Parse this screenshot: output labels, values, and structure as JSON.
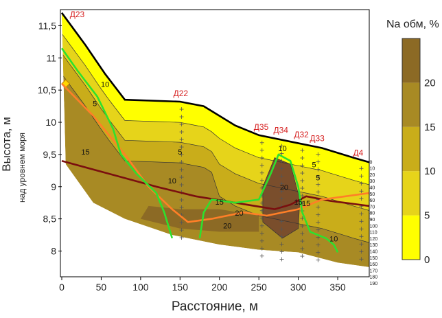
{
  "chart_data": {
    "type": "contour",
    "xlabel": "Расстояние, м",
    "ylabel": "Высота, м",
    "ylabel_sub": "над уровнем моря",
    "xlim": [
      0,
      390
    ],
    "ylim": [
      7.6,
      11.75
    ],
    "x_ticks": [
      0,
      50,
      100,
      150,
      200,
      250,
      300,
      350
    ],
    "y_ticks": [
      8,
      8.5,
      9,
      9.5,
      10,
      10.5,
      11,
      11.5
    ],
    "x_tick_labels": [
      "0",
      "50",
      "100",
      "150",
      "200",
      "250",
      "300",
      "350"
    ],
    "y_tick_labels": [
      "8",
      "8,5",
      "9",
      "9,5",
      "10",
      "10,5",
      "11",
      "11,5"
    ],
    "colorbar": {
      "title": "Na обм, %",
      "ticks": [
        "0",
        "5",
        "10",
        "15",
        "20"
      ],
      "levels": [
        0,
        5,
        10,
        15,
        20,
        25
      ],
      "colors": [
        "#ffff00",
        "#e6d41a",
        "#c9ad1a",
        "#a88a24",
        "#8c6a25",
        "#7a4e2c"
      ]
    },
    "surface": [
      [
        0,
        11.7
      ],
      [
        30,
        11.2
      ],
      [
        55,
        10.75
      ],
      [
        80,
        10.35
      ],
      [
        150,
        10.32
      ],
      [
        180,
        10.25
      ],
      [
        220,
        9.95
      ],
      [
        250,
        9.8
      ],
      [
        290,
        9.7
      ],
      [
        330,
        9.6
      ],
      [
        370,
        9.45
      ],
      [
        390,
        9.38
      ]
    ],
    "base": [
      [
        5,
        9.35
      ],
      [
        40,
        8.75
      ],
      [
        80,
        8.5
      ],
      [
        140,
        8.25
      ],
      [
        200,
        8.1
      ],
      [
        250,
        8.02
      ],
      [
        300,
        7.98
      ],
      [
        350,
        7.82
      ],
      [
        390,
        7.75
      ]
    ],
    "contour_labels": [
      "5",
      "10",
      "15",
      "5",
      "10",
      "15",
      "20",
      "20",
      "10",
      "15",
      "20",
      "15",
      "5",
      "10",
      "5"
    ],
    "wells": [
      {
        "label": "Д23",
        "x": 5,
        "top": 11.7,
        "depths": []
      },
      {
        "label": "Д22",
        "x": 152,
        "top": 10.32,
        "depths": []
      },
      {
        "label": "Д35",
        "x": 254,
        "top": 9.8,
        "depths": []
      },
      {
        "label": "Д34",
        "x": 279,
        "top": 9.75,
        "depths": []
      },
      {
        "label": "Д32",
        "x": 305,
        "top": 9.68,
        "depths": []
      },
      {
        "label": "Д33",
        "x": 325,
        "top": 9.62,
        "depths": []
      },
      {
        "label": "Д4",
        "x": 380,
        "top": 9.4,
        "depths": [
          "0",
          "10",
          "20",
          "30",
          "40",
          "50",
          "60",
          "70",
          "80",
          "90",
          "100",
          "110",
          "120",
          "130",
          "140",
          "150",
          "160",
          "170",
          "180",
          "190"
        ]
      }
    ],
    "lines": [
      {
        "color": "#7a0f0f",
        "points": [
          [
            0,
            9.4
          ],
          [
            60,
            9.2
          ],
          [
            120,
            9.0
          ],
          [
            170,
            8.85
          ],
          [
            220,
            8.75
          ],
          [
            270,
            8.65
          ],
          [
            290,
            8.72
          ],
          [
            310,
            8.85
          ],
          [
            340,
            8.78
          ],
          [
            390,
            8.7
          ]
        ]
      },
      {
        "color": "#ff7f27",
        "points": [
          [
            0,
            10.6
          ],
          [
            40,
            10.1
          ],
          [
            80,
            9.5
          ],
          [
            110,
            9.0
          ],
          [
            140,
            8.65
          ],
          [
            160,
            8.45
          ],
          [
            190,
            8.5
          ],
          [
            230,
            8.6
          ],
          [
            260,
            8.55
          ],
          [
            300,
            8.65
          ],
          [
            330,
            8.8
          ],
          [
            360,
            8.85
          ],
          [
            390,
            8.9
          ]
        ]
      },
      {
        "color": "#2ee02e",
        "points": [
          [
            0,
            11.15
          ],
          [
            20,
            10.8
          ],
          [
            45,
            10.4
          ],
          [
            65,
            9.9
          ],
          [
            75,
            9.5
          ],
          [
            95,
            9.2
          ],
          [
            120,
            8.9
          ],
          [
            130,
            8.6
          ],
          [
            140,
            8.2
          ]
        ]
      },
      {
        "color": "#2ee02e",
        "points": [
          [
            175,
            8.2
          ],
          [
            180,
            8.6
          ],
          [
            190,
            8.8
          ],
          [
            220,
            8.75
          ],
          [
            250,
            8.8
          ],
          [
            265,
            9.2
          ],
          [
            275,
            9.5
          ],
          [
            290,
            9.4
          ],
          [
            300,
            9.0
          ],
          [
            305,
            8.6
          ],
          [
            315,
            8.3
          ],
          [
            335,
            8.2
          ],
          [
            345,
            8.1
          ],
          [
            350,
            7.98
          ]
        ]
      }
    ]
  }
}
